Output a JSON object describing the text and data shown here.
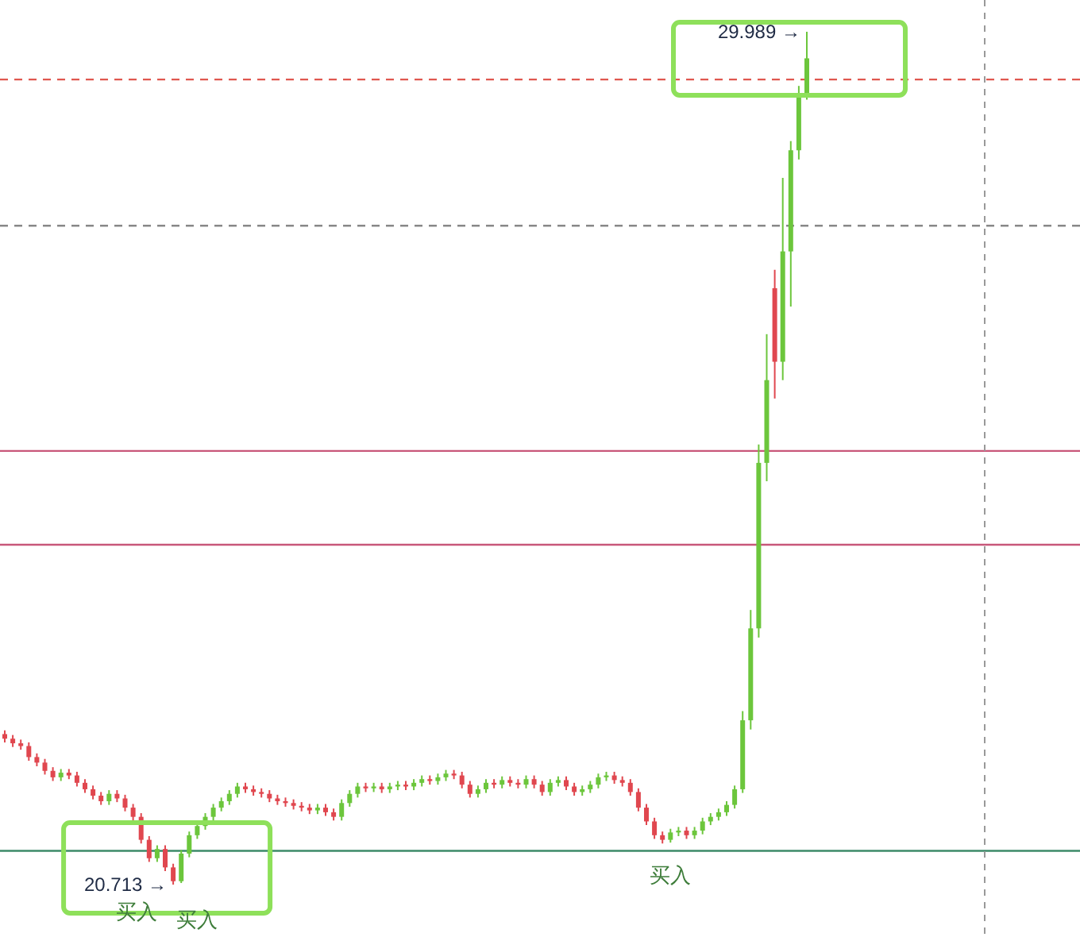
{
  "chart_data": {
    "type": "candlestick",
    "relative": false,
    "categories": [
      null,
      null,
      null,
      null,
      null,
      null,
      null,
      null,
      null,
      null,
      null,
      null,
      null,
      null,
      null,
      null,
      null,
      null,
      null,
      null,
      null,
      null,
      null,
      null,
      null,
      null,
      null,
      null,
      null,
      null,
      null,
      null,
      null,
      null,
      null,
      null,
      null,
      null,
      null,
      null,
      null,
      null,
      null,
      null,
      null,
      null,
      null,
      null,
      null,
      null,
      null,
      null,
      null,
      null,
      null,
      null,
      null,
      null,
      null,
      null,
      null,
      null,
      null,
      null,
      null,
      null,
      null,
      null,
      null,
      null,
      null,
      null,
      null,
      null,
      null,
      null,
      null,
      null,
      null,
      null,
      null,
      null,
      null,
      null,
      null,
      null,
      null,
      null,
      null,
      null,
      null,
      null,
      null,
      null,
      null,
      null,
      null,
      null,
      null,
      null,
      null
    ],
    "colors": [
      "#e0474f",
      "#e0474f",
      "#e0474f",
      "#e0474f",
      "#e0474f",
      "#e0474f",
      "#e0474f",
      "#6cc63c",
      "#e0474f",
      "#e0474f",
      "#e0474f",
      "#e0474f",
      "#e0474f",
      "#6cc63c",
      "#e0474f",
      "#e0474f",
      "#e0474f",
      "#e0474f",
      "#e0474f",
      "#6cc63c",
      "#e0474f",
      "#e0474f",
      "#6cc63c",
      "#6cc63c",
      "#6cc63c",
      "#6cc63c",
      "#6cc63c",
      "#6cc63c",
      "#6cc63c",
      "#6cc63c",
      "#e0474f",
      "#e0474f",
      "#e0474f",
      "#e0474f",
      "#e0474f",
      "#e0474f",
      "#e0474f",
      "#e0474f",
      "#e0474f",
      "#6cc63c",
      "#e0474f",
      "#e0474f",
      "#6cc63c",
      "#6cc63c",
      "#6cc63c",
      "#e0474f",
      "#6cc63c",
      "#e0474f",
      "#6cc63c",
      "#6cc63c",
      "#e0474f",
      "#6cc63c",
      "#6cc63c",
      "#e0474f",
      "#6cc63c",
      "#6cc63c",
      "#e0474f",
      "#e0474f",
      "#e0474f",
      "#6cc63c",
      "#6cc63c",
      "#e0474f",
      "#6cc63c",
      "#e0474f",
      "#e0474f",
      "#6cc63c",
      "#e0474f",
      "#e0474f",
      "#6cc63c",
      "#6cc63c",
      "#e0474f",
      "#e0474f",
      "#6cc63c",
      "#6cc63c",
      "#6cc63c",
      "#6cc63c",
      "#e0474f",
      "#e0474f",
      "#e0474f",
      "#e0474f",
      "#e0474f",
      "#e0474f",
      "#e0474f",
      "#6cc63c",
      "#6cc63c",
      "#e0474f",
      "#6cc63c",
      "#6cc63c",
      "#6cc63c",
      "#6cc63c",
      "#6cc63c",
      "#6cc63c",
      "#6cc63c",
      "#6cc63c",
      "#6cc63c",
      "#6cc63c",
      "#e0474f",
      "#6cc63c",
      "#6cc63c",
      "#6cc63c",
      "#6cc63c"
    ],
    "ohlc": [
      [
        22.35,
        22.39,
        22.26,
        22.3
      ],
      [
        22.3,
        22.34,
        22.21,
        22.25
      ],
      [
        22.25,
        22.29,
        22.18,
        22.22
      ],
      [
        22.22,
        22.26,
        22.06,
        22.1
      ],
      [
        22.1,
        22.14,
        22.0,
        22.04
      ],
      [
        22.04,
        22.08,
        21.91,
        21.95
      ],
      [
        21.95,
        21.99,
        21.84,
        21.88
      ],
      [
        21.88,
        21.97,
        21.84,
        21.93
      ],
      [
        21.93,
        21.97,
        21.86,
        21.9
      ],
      [
        21.9,
        21.94,
        21.78,
        21.82
      ],
      [
        21.82,
        21.86,
        21.71,
        21.75
      ],
      [
        21.75,
        21.79,
        21.64,
        21.68
      ],
      [
        21.68,
        21.72,
        21.58,
        21.62
      ],
      [
        21.62,
        21.74,
        21.58,
        21.7
      ],
      [
        21.7,
        21.74,
        21.61,
        21.65
      ],
      [
        21.65,
        21.69,
        21.51,
        21.55
      ],
      [
        21.55,
        21.59,
        21.41,
        21.45
      ],
      [
        21.45,
        21.49,
        21.16,
        21.2
      ],
      [
        21.2,
        21.24,
        20.96,
        21.0
      ],
      [
        21.0,
        21.14,
        20.96,
        21.1
      ],
      [
        21.1,
        21.14,
        20.86,
        20.9
      ],
      [
        20.9,
        20.94,
        20.713,
        20.75
      ],
      [
        20.75,
        21.09,
        20.73,
        21.05
      ],
      [
        21.05,
        21.29,
        21.01,
        21.25
      ],
      [
        21.25,
        21.39,
        21.21,
        21.35
      ],
      [
        21.35,
        21.49,
        21.31,
        21.45
      ],
      [
        21.45,
        21.59,
        21.41,
        21.55
      ],
      [
        21.55,
        21.66,
        21.51,
        21.62
      ],
      [
        21.62,
        21.74,
        21.58,
        21.7
      ],
      [
        21.7,
        21.82,
        21.66,
        21.78
      ],
      [
        21.78,
        21.82,
        21.71,
        21.75
      ],
      [
        21.75,
        21.79,
        21.68,
        21.72
      ],
      [
        21.72,
        21.76,
        21.66,
        21.7
      ],
      [
        21.7,
        21.74,
        21.61,
        21.65
      ],
      [
        21.65,
        21.69,
        21.58,
        21.62
      ],
      [
        21.62,
        21.66,
        21.56,
        21.6
      ],
      [
        21.6,
        21.64,
        21.53,
        21.57
      ],
      [
        21.57,
        21.61,
        21.51,
        21.55
      ],
      [
        21.55,
        21.59,
        21.48,
        21.52
      ],
      [
        21.52,
        21.59,
        21.48,
        21.55
      ],
      [
        21.55,
        21.59,
        21.46,
        21.5
      ],
      [
        21.5,
        21.54,
        21.41,
        21.45
      ],
      [
        21.45,
        21.64,
        21.41,
        21.6
      ],
      [
        21.6,
        21.74,
        21.56,
        21.7
      ],
      [
        21.7,
        21.82,
        21.66,
        21.78
      ],
      [
        21.78,
        21.82,
        21.72,
        21.76
      ],
      [
        21.76,
        21.82,
        21.72,
        21.78
      ],
      [
        21.78,
        21.82,
        21.71,
        21.75
      ],
      [
        21.75,
        21.82,
        21.71,
        21.78
      ],
      [
        21.78,
        21.84,
        21.74,
        21.8
      ],
      [
        21.8,
        21.84,
        21.74,
        21.78
      ],
      [
        21.78,
        21.86,
        21.74,
        21.82
      ],
      [
        21.82,
        21.9,
        21.78,
        21.86
      ],
      [
        21.86,
        21.9,
        21.8,
        21.84
      ],
      [
        21.84,
        21.92,
        21.8,
        21.88
      ],
      [
        21.88,
        21.96,
        21.84,
        21.92
      ],
      [
        21.92,
        21.96,
        21.86,
        21.9
      ],
      [
        21.9,
        21.94,
        21.76,
        21.8
      ],
      [
        21.8,
        21.84,
        21.66,
        21.7
      ],
      [
        21.7,
        21.79,
        21.66,
        21.75
      ],
      [
        21.75,
        21.86,
        21.71,
        21.82
      ],
      [
        21.82,
        21.86,
        21.76,
        21.8
      ],
      [
        21.8,
        21.89,
        21.76,
        21.85
      ],
      [
        21.85,
        21.89,
        21.78,
        21.82
      ],
      [
        21.82,
        21.86,
        21.76,
        21.8
      ],
      [
        21.8,
        21.9,
        21.76,
        21.86
      ],
      [
        21.86,
        21.9,
        21.76,
        21.8
      ],
      [
        21.8,
        21.84,
        21.68,
        21.72
      ],
      [
        21.72,
        21.86,
        21.68,
        21.82
      ],
      [
        21.82,
        21.89,
        21.78,
        21.85
      ],
      [
        21.85,
        21.89,
        21.74,
        21.78
      ],
      [
        21.78,
        21.82,
        21.68,
        21.72
      ],
      [
        21.72,
        21.79,
        21.68,
        21.75
      ],
      [
        21.75,
        21.84,
        21.71,
        21.8
      ],
      [
        21.8,
        21.92,
        21.76,
        21.88
      ],
      [
        21.88,
        21.94,
        21.84,
        21.9
      ],
      [
        21.9,
        21.94,
        21.81,
        21.85
      ],
      [
        21.85,
        21.89,
        21.78,
        21.82
      ],
      [
        21.82,
        21.86,
        21.68,
        21.72
      ],
      [
        21.72,
        21.76,
        21.51,
        21.55
      ],
      [
        21.55,
        21.59,
        21.36,
        21.4
      ],
      [
        21.4,
        21.44,
        21.21,
        21.25
      ],
      [
        21.25,
        21.29,
        21.16,
        21.2
      ],
      [
        21.2,
        21.32,
        21.17,
        21.28
      ],
      [
        21.28,
        21.34,
        21.24,
        21.3
      ],
      [
        21.3,
        21.34,
        21.21,
        21.25
      ],
      [
        21.25,
        21.34,
        21.21,
        21.3
      ],
      [
        21.3,
        21.44,
        21.26,
        21.4
      ],
      [
        21.4,
        21.49,
        21.36,
        21.45
      ],
      [
        21.45,
        21.54,
        21.41,
        21.5
      ],
      [
        21.5,
        21.62,
        21.46,
        21.58
      ],
      [
        21.58,
        21.79,
        21.54,
        21.75
      ],
      [
        21.75,
        22.6,
        21.71,
        22.5
      ],
      [
        22.5,
        23.7,
        22.4,
        23.5
      ],
      [
        23.5,
        25.5,
        23.4,
        25.3
      ],
      [
        25.3,
        26.7,
        25.1,
        26.2
      ],
      [
        27.2,
        27.4,
        26.0,
        26.4
      ],
      [
        26.4,
        28.4,
        26.2,
        27.6
      ],
      [
        27.6,
        28.8,
        27.0,
        28.7
      ],
      [
        28.7,
        29.4,
        28.6,
        29.3
      ],
      [
        29.3,
        29.989,
        29.25,
        29.7
      ]
    ],
    "ref_lines": [
      {
        "axis": "y",
        "value": 29.47,
        "color": "#e0574f",
        "line_style": "dashed"
      },
      {
        "axis": "y",
        "value": 27.88,
        "color": "#888888",
        "line_style": "dashed"
      },
      {
        "axis": "y",
        "value": 25.43,
        "color": "#c8577a",
        "line_style": "solid"
      },
      {
        "axis": "y",
        "value": 24.41,
        "color": "#c8577a",
        "line_style": "solid"
      },
      {
        "axis": "y",
        "value": 21.08,
        "color": "#3c8a68",
        "line_style": "solid"
      }
    ],
    "annotations": [
      "29.989 →",
      "20.713 →",
      "买入",
      "买入",
      "买入"
    ]
  }
}
